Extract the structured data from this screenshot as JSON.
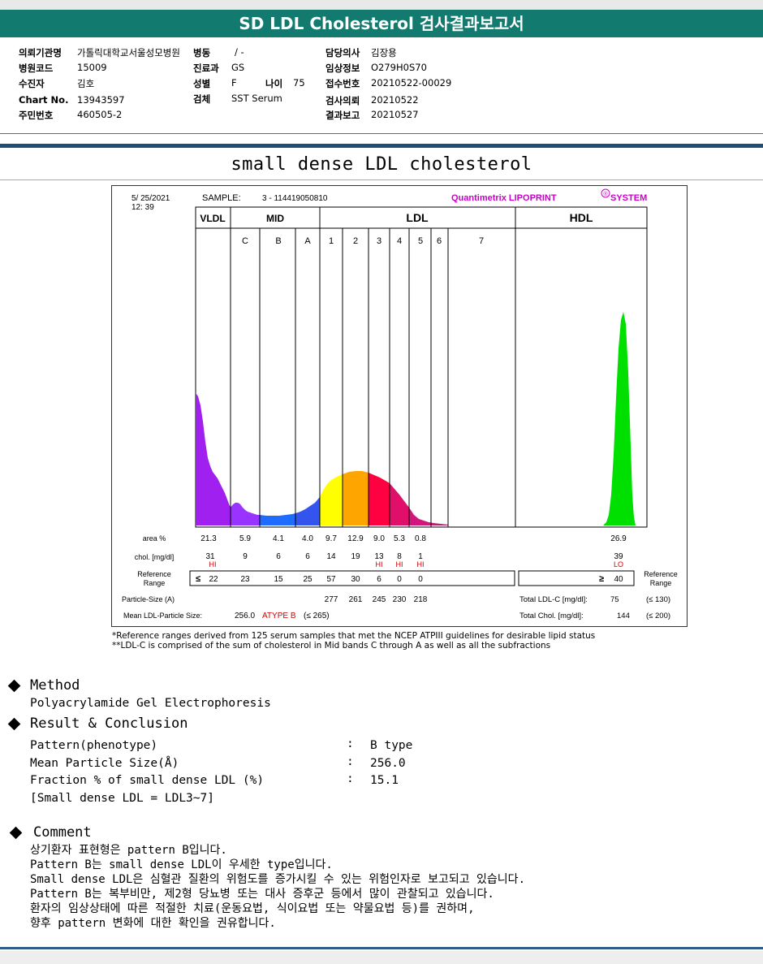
{
  "header": {
    "title": "SD LDL Cholesterol 검사결과보고서"
  },
  "patient": {
    "rows": [
      {
        "k1": "의뢰기관명",
        "v1": "가톨릭대학교서울성모병원",
        "k2": "병동",
        "v2": "/ -",
        "k3": "담당의사",
        "v3": "김장용"
      },
      {
        "k1": "병원코드",
        "v1": "15009",
        "k2": "진료과",
        "v2": "GS",
        "k3": "임상정보",
        "v3": "O279H0S70"
      },
      {
        "k1": "수진자",
        "v1": "김호",
        "k2": "성별",
        "v2": "F",
        "k3": "접수번호",
        "v3": "20210522-00029"
      },
      {
        "k1": "Chart No.",
        "v1": "13943597",
        "k2": "검체",
        "v2": "SST Serum",
        "k3": "검사의뢰",
        "v3": "20210522"
      },
      {
        "k1": "주민번호",
        "v1": "460505-2",
        "k2": "",
        "v2": "",
        "k3": "결과보고",
        "v3": "20210527"
      }
    ],
    "age_label": "나이",
    "age_value": "75"
  },
  "report_title": "small dense LDL cholesterol",
  "report": {
    "date": "5/ 25/2021",
    "time": "12: 39",
    "sample_label": "SAMPLE:",
    "sample_value": "3 - 114419050810",
    "brand": "Quantimetrix LIPOPRINT",
    "brand_mark": "®",
    "brand_suffix": "SYSTEM",
    "bands_top": {
      "vldl": "VLDL",
      "mid": "MID",
      "ldl": "LDL",
      "hdl": "HDL"
    },
    "sub_bands": [
      "C",
      "B",
      "A",
      "1",
      "2",
      "3",
      "4",
      "5",
      "6",
      "7"
    ],
    "row_labels": {
      "area": "area %",
      "chol": "chol. [mg/dl]",
      "ref1": "Reference",
      "ref2": "Range",
      "particle": "Particle-Size (A)",
      "mean": "Mean LDL-Particle Size:"
    },
    "area": [
      "21.3",
      "5.9",
      "4.1",
      "4.0",
      "9.7",
      "12.9",
      "9.0",
      "5.3",
      "0.8"
    ],
    "hdl_area": "26.9",
    "chol": [
      "31",
      "9",
      "6",
      "6",
      "14",
      "19",
      "13",
      "8",
      "1"
    ],
    "chol_flags": [
      "HI",
      "",
      "",
      "",
      "",
      "",
      "HI",
      "HI",
      "HI"
    ],
    "hdl_chol": "39",
    "hdl_flag": "LO",
    "ref_symbol": "≤",
    "ref": [
      "22",
      "23",
      "15",
      "25",
      "57",
      "30",
      "6",
      "0",
      "0"
    ],
    "hdl_ref_symbol": "≥",
    "hdl_ref": "40",
    "ref_right1": "Reference",
    "ref_right2": "Range",
    "particle": [
      "277",
      "261",
      "245",
      "230",
      "218"
    ],
    "mean_value": "256.0",
    "mean_type": "ATYPE B",
    "mean_ref": "(≤ 265)",
    "total_ldl_label": "Total LDL-C [mg/dl]:",
    "total_ldl_value": "75",
    "total_ldl_ref": "(≤ 130)",
    "total_chol_label": "Total Chol. [mg/dl]:",
    "total_chol_value": "144",
    "total_chol_ref": "(≤ 200)"
  },
  "footnotes": [
    "*Reference ranges derived from 125 serum samples that met the NCEP ATPIII guidelines for desirable lipid status",
    "**LDL-C is comprised of the sum of cholesterol in Mid bands C through A as well as all the subfractions"
  ],
  "method": {
    "heading": "Method",
    "text": "Polyacrylamide Gel Electrophoresis"
  },
  "result": {
    "heading": "Result & Conclusion",
    "items": [
      {
        "label": "Pattern(phenotype)",
        "value": "B type"
      },
      {
        "label": "Mean Particle Size(Å)",
        "value": "256.0"
      },
      {
        "label": "Fraction % of small dense LDL (%)",
        "value": "15.1"
      }
    ],
    "colon": ":",
    "note": "[Small dense LDL = LDL3~7]"
  },
  "comment": {
    "heading": "Comment",
    "lines": [
      "상기환자 표현형은 pattern B입니다.",
      "Pattern B는 small dense LDL이 우세한 type입니다.",
      "Small dense LDL은 심혈관 질환의 위험도를 증가시킬 수 있는 위험인자로 보고되고 있습니다.",
      "Pattern B는 복부비만, 제2형 당뇨병 또는 대사 증후군 등에서 많이 관찰되고 있습니다.",
      "환자의 임상상태에 따른 적절한 치료(운동요법, 식이요법 또는 약물요법 등)를 권하며,",
      "향후 pattern 변화에 대한 확인을 권유합니다."
    ]
  },
  "colors": {
    "title_bar": "#127a6f",
    "vldl": "#a020f0",
    "mid_c": "#9933ff",
    "mid_b": "#1e6cff",
    "mid_a": "#3355ee",
    "ldl1": "#ffff00",
    "ldl2": "#ffa500",
    "ldl3": "#ff0040",
    "ldl4": "#e0106a",
    "hdl": "#00e000",
    "flag": "#cc0000",
    "brand": "#cc00cc"
  }
}
